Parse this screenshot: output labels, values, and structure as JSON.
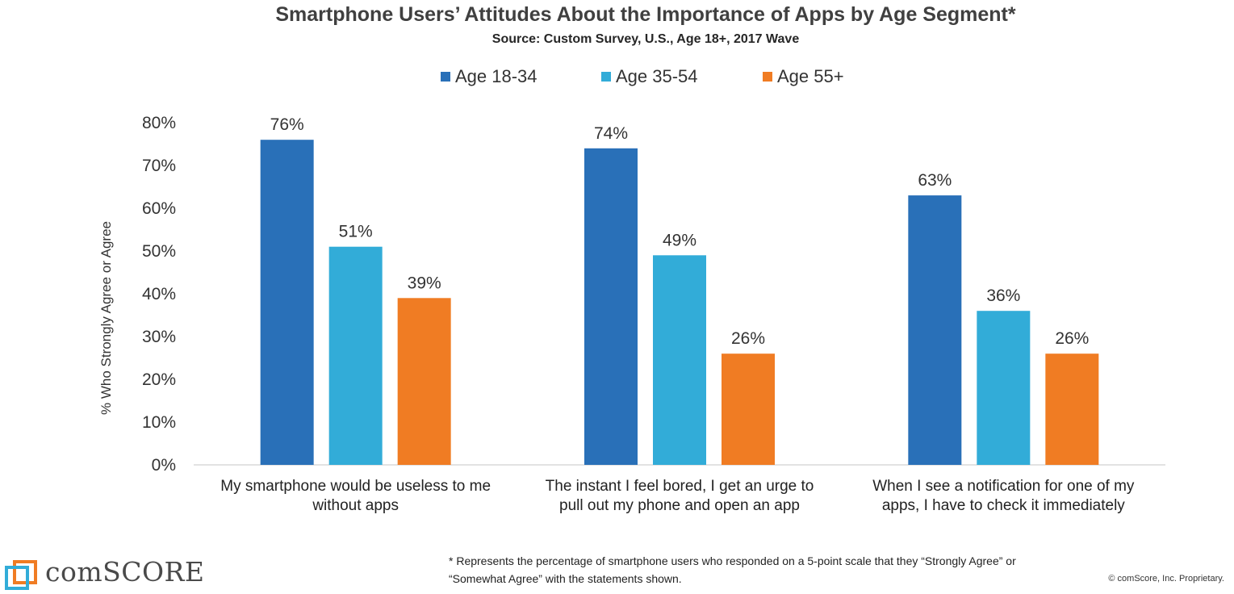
{
  "chart_data": {
    "type": "bar",
    "title": "Smartphone Users’ Attitudes About the Importance of Apps by Age Segment*",
    "subtitle": "Source: Custom Survey, U.S., Age 18+, 2017 Wave",
    "ylabel": "% Who Strongly Agree or Agree",
    "xlabel": "",
    "ylim": [
      0,
      80
    ],
    "yticks": [
      "0%",
      "10%",
      "20%",
      "30%",
      "40%",
      "50%",
      "60%",
      "70%",
      "80%"
    ],
    "categories": [
      [
        "My smartphone would be useless to me",
        "without apps"
      ],
      [
        "The instant I feel bored, I get an urge to",
        "pull out my phone and open an app"
      ],
      [
        "When I see a notification for one of my",
        "apps, I have to check it immediately"
      ]
    ],
    "series": [
      {
        "name": "Age 18-34",
        "color": "#2970b8",
        "values": [
          76,
          74,
          63
        ],
        "labels": [
          "76%",
          "74%",
          "63%"
        ]
      },
      {
        "name": "Age 35-54",
        "color": "#32acd8",
        "values": [
          51,
          49,
          36
        ],
        "labels": [
          "51%",
          "49%",
          "36%"
        ]
      },
      {
        "name": "Age 55+",
        "color": "#f07c23",
        "values": [
          39,
          26,
          26
        ],
        "labels": [
          "39%",
          "26%",
          "26%"
        ]
      }
    ],
    "grid": false,
    "legend_position": "top"
  },
  "footnote": "* Represents the percentage of smartphone users who responded on a 5-point scale that they “Strongly Agree” or “Somewhat Agree” with the statements shown.",
  "copyright": "© comScore, Inc. Proprietary.",
  "logo": {
    "text": "comSCORE",
    "icon": "comscore-logo-icon"
  }
}
